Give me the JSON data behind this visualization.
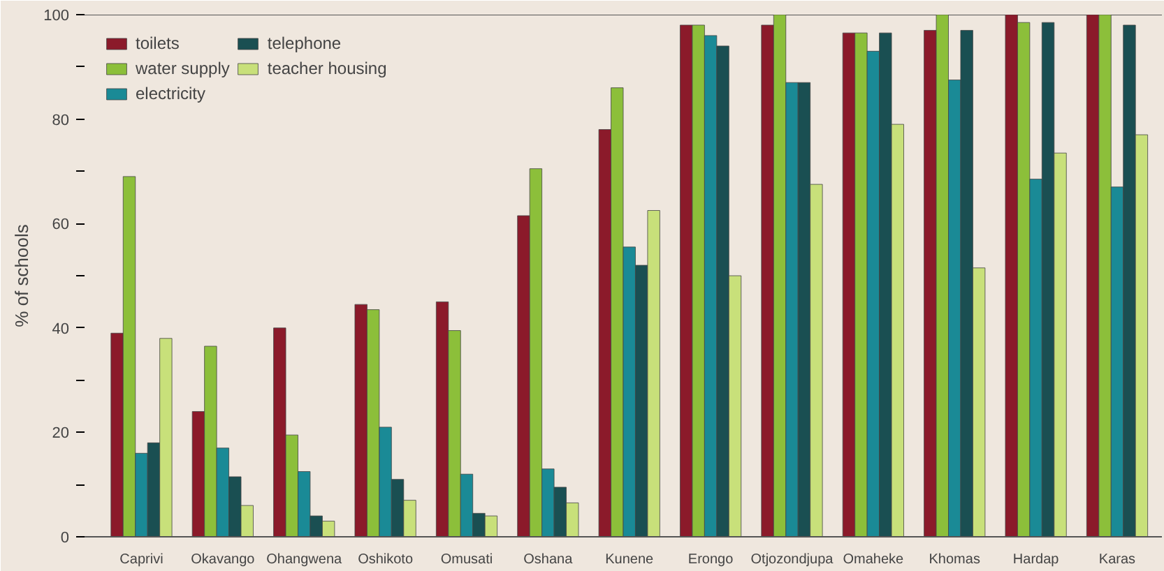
{
  "chart_data": {
    "type": "bar",
    "ylabel": "% of schools",
    "categories": [
      "Caprivi",
      "Okavango",
      "Ohangwena",
      "Oshikoto",
      "Omusati",
      "Oshana",
      "Kunene",
      "Erongo",
      "Otjozondjupa",
      "Omaheke",
      "Khomas",
      "Hardap",
      "Karas"
    ],
    "series": [
      {
        "name": "toilets",
        "color": "#8b1a2a",
        "values": [
          39,
          24,
          40,
          44.5,
          45,
          61.5,
          78,
          98,
          98,
          96.5,
          97,
          100,
          100
        ]
      },
      {
        "name": "water supply",
        "color": "#8cbf3a",
        "values": [
          69,
          36.5,
          19.5,
          43.5,
          39.5,
          70.5,
          86,
          98,
          100,
          96.5,
          100,
          98.5,
          100
        ]
      },
      {
        "name": "electricity",
        "color": "#1a8a96",
        "values": [
          16,
          17,
          12.5,
          21,
          12,
          13,
          55.5,
          96,
          87,
          93,
          87.5,
          68.5,
          67
        ]
      },
      {
        "name": "telephone",
        "color": "#1a4f52",
        "values": [
          18,
          11.5,
          4,
          11,
          4.5,
          9.5,
          52,
          94,
          87,
          96.5,
          97,
          98.5,
          98
        ]
      },
      {
        "name": "teacher housing",
        "color": "#c8e07a",
        "values": [
          38,
          6,
          3,
          7,
          4,
          6.5,
          62.5,
          50,
          67.5,
          79,
          51.5,
          73.5,
          77
        ]
      }
    ],
    "ylim": [
      0,
      100
    ],
    "yticks": [
      0,
      {
        "value": 10,
        "label": null
      },
      20,
      {
        "value": 30,
        "label": null
      },
      40,
      {
        "value": 50,
        "label": null
      },
      60,
      {
        "value": 70,
        "label": null
      },
      80,
      {
        "value": 90,
        "label": null
      },
      100
    ],
    "grid": false,
    "legend": "top left"
  }
}
